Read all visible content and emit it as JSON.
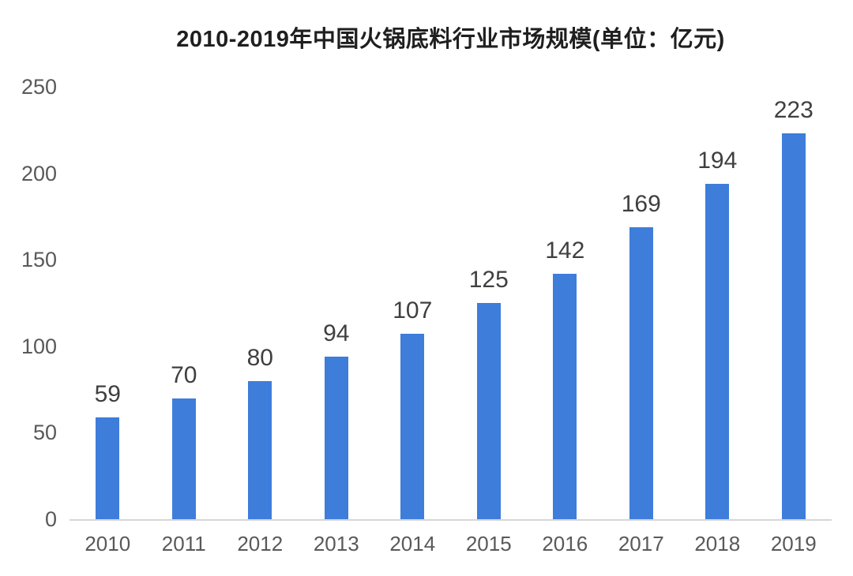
{
  "chart_data": {
    "type": "bar",
    "title": "2010-2019年中国火锅底料行业市场规模(单位：亿元)",
    "categories": [
      "2010",
      "2011",
      "2012",
      "2013",
      "2014",
      "2015",
      "2016",
      "2017",
      "2018",
      "2019"
    ],
    "values": [
      59,
      70,
      80,
      94,
      107,
      125,
      142,
      169,
      194,
      223
    ],
    "unit_label": "亿元",
    "xlabel": "",
    "ylabel": "",
    "ylim": [
      0,
      250
    ],
    "yticks": [
      0,
      50,
      100,
      150,
      200,
      250
    ],
    "grid": false,
    "legend": "none",
    "data_labels_shown": true,
    "colors": {
      "bar": "#3e7dda",
      "title": "#1f1f1f",
      "data_label": "#3f3f3f",
      "tick_label": "#595959",
      "axis_line": "#d6d6d6",
      "background": "#ffffff"
    }
  }
}
